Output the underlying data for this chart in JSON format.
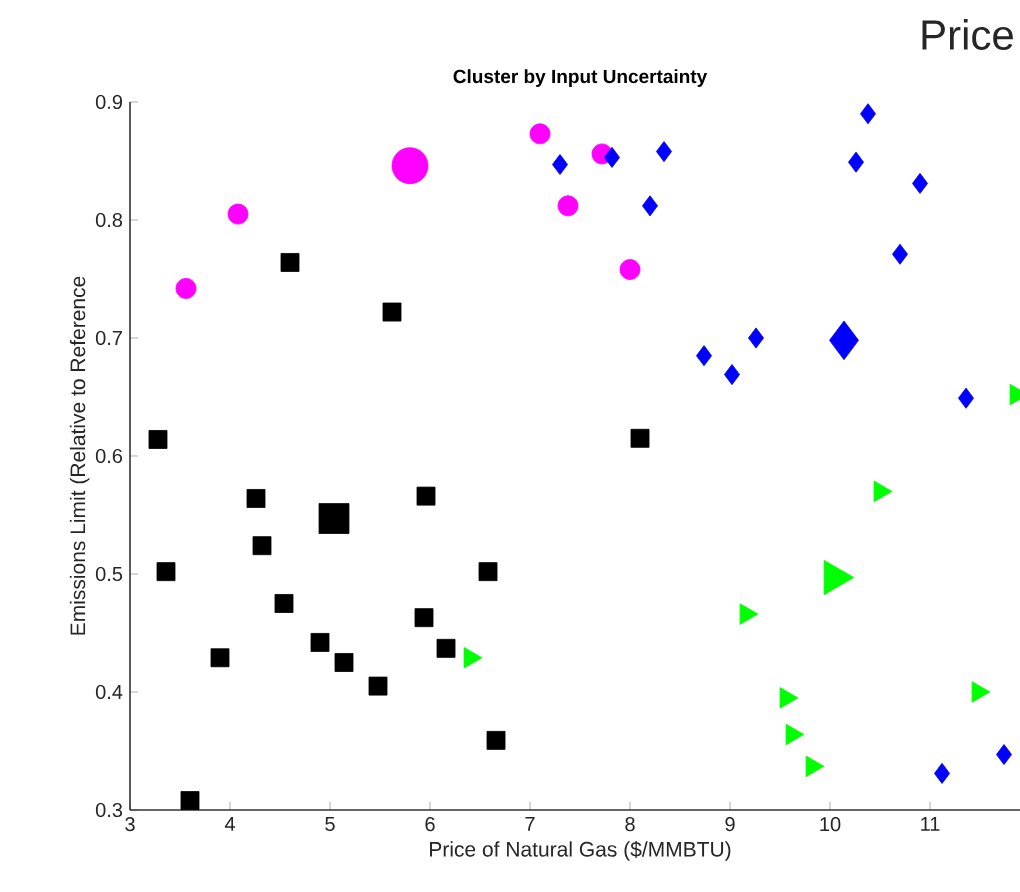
{
  "chart_data": {
    "type": "bubble",
    "title": "Cluster by Input Uncertainty",
    "xlabel": "Price of Natural Gas ($/MMBTU)",
    "ylabel": "Emissions Limit (Relative to Reference",
    "annotations": [
      "Price"
    ],
    "xlim": [
      3,
      12
    ],
    "ylim": [
      0.3,
      0.9
    ],
    "xticks": [
      3,
      4,
      5,
      6,
      7,
      8,
      9,
      10,
      11
    ],
    "yticks": [
      0.3,
      0.4,
      0.5,
      0.6,
      0.7,
      0.8,
      0.9
    ],
    "grid": false,
    "series": [
      {
        "color": "#ff00ff",
        "marker": "circle",
        "x": [
          3.56,
          4.08,
          5.8,
          7.1,
          7.38,
          7.72,
          8.0
        ],
        "values": [
          0.742,
          0.805,
          0.846,
          0.873,
          0.812,
          0.856,
          0.758
        ],
        "sizes": [
          0.31,
          0.31,
          1,
          0.31,
          0.31,
          0.31,
          0.31
        ]
      },
      {
        "color": "#0000ff",
        "marker": "diamond",
        "x": [
          7.3,
          7.82,
          8.34,
          8.2,
          8.74,
          9.02,
          9.26,
          10.14,
          10.38,
          10.26,
          10.9,
          10.7,
          11.36,
          11.12,
          11.74
        ],
        "values": [
          0.847,
          0.853,
          0.858,
          0.812,
          0.685,
          0.669,
          0.7,
          0.698,
          0.89,
          0.849,
          0.831,
          0.771,
          0.649,
          0.331,
          0.347
        ],
        "sizes": [
          0.15,
          0.15,
          0.15,
          0.15,
          0.15,
          0.15,
          0.15,
          0.55,
          0.15,
          0.15,
          0.15,
          0.15,
          0.15,
          0.15,
          0.15
        ]
      },
      {
        "color": "#000000",
        "marker": "square",
        "x": [
          3.28,
          3.36,
          3.6,
          3.9,
          4.26,
          4.32,
          4.54,
          4.9,
          5.04,
          5.14,
          5.48,
          5.94,
          5.96,
          6.16,
          6.58,
          6.66,
          4.6,
          5.62,
          8.1
        ],
        "values": [
          0.614,
          0.502,
          0.308,
          0.429,
          0.564,
          0.524,
          0.475,
          0.442,
          0.547,
          0.425,
          0.405,
          0.463,
          0.566,
          0.437,
          0.502,
          0.359,
          0.764,
          0.722,
          0.615
        ],
        "sizes": [
          0.32,
          0.32,
          0.32,
          0.32,
          0.32,
          0.32,
          0.32,
          0.32,
          0.88,
          0.32,
          0.32,
          0.32,
          0.32,
          0.32,
          0.32,
          0.32,
          0.32,
          0.32,
          0.32
        ]
      },
      {
        "color": "#00ff00",
        "marker": "triangle",
        "x": [
          6.4,
          10.5,
          10.04,
          9.16,
          9.56,
          9.62,
          9.82,
          11.48,
          11.86
        ],
        "values": [
          0.429,
          0.57,
          0.497,
          0.466,
          0.395,
          0.364,
          0.337,
          0.4,
          0.652
        ],
        "sizes": [
          0.18,
          0.18,
          0.5,
          0.18,
          0.18,
          0.18,
          0.18,
          0.18,
          0.18
        ]
      }
    ]
  }
}
